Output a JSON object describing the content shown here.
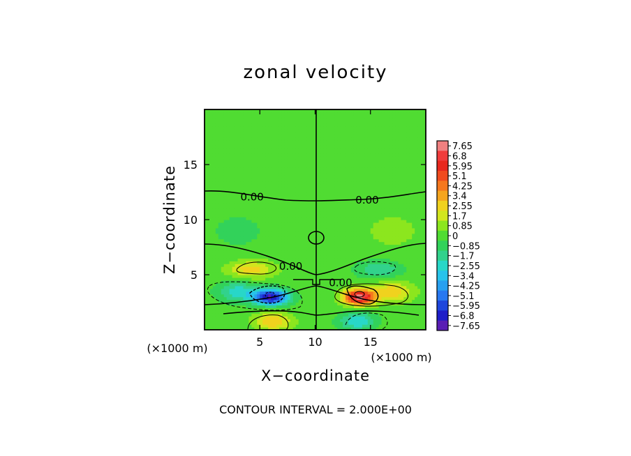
{
  "chart_data": {
    "type": "heatmap",
    "title": "zonal velocity",
    "xlabel": "X−coordinate",
    "ylabel": "Z−coordinate",
    "x_unit": "(×1000 m)",
    "y_unit": "(×1000 m)",
    "xlim": [
      0,
      20
    ],
    "ylim": [
      0,
      20
    ],
    "x_ticks": [
      5,
      10,
      15
    ],
    "y_ticks": [
      5,
      10,
      15
    ],
    "x_tick_labels": [
      "5",
      "10",
      "15"
    ],
    "y_tick_labels": [
      "5",
      "10",
      "15"
    ],
    "contour_interval_text": "CONTOUR INTERVAL = 2.000E+00",
    "contour_labels": [
      {
        "text": "0.00",
        "x": 4.3,
        "y": 12.0
      },
      {
        "text": "0.00",
        "x": 14.7,
        "y": 11.7
      },
      {
        "text": "0.00",
        "x": 7.8,
        "y": 5.7
      },
      {
        "text": "0.00",
        "x": 12.3,
        "y": 4.2
      }
    ],
    "colorbar": {
      "labels": [
        "7.65",
        "6.8",
        "5.95",
        "5.1",
        "4.25",
        "3.4",
        "2.55",
        "1.7",
        "0.85",
        "0",
        "−0.85",
        "−1.7",
        "−2.55",
        "−3.4",
        "−4.25",
        "−5.1",
        "−5.95",
        "−6.8",
        "−7.65"
      ],
      "colors": [
        "#f08080",
        "#f03c3c",
        "#e8281e",
        "#f04b1e",
        "#f5781e",
        "#f5a51e",
        "#f0d21e",
        "#d2e61e",
        "#8ce61e",
        "#50dc32",
        "#32d25a",
        "#32d28c",
        "#28d7c8",
        "#28c3eb",
        "#28a0f0",
        "#2878f0",
        "#1e46dc",
        "#1e1ec8",
        "#5a1eb4"
      ],
      "range": [
        -7.65,
        7.65
      ]
    },
    "features": [
      {
        "x": 6.0,
        "y": 3.0,
        "sx": 1.6,
        "sy": 0.7,
        "value": -7.0
      },
      {
        "x": 14.0,
        "y": 3.0,
        "sx": 1.4,
        "sy": 0.7,
        "value": 7.2
      },
      {
        "x": 4.2,
        "y": 5.5,
        "sx": 2.0,
        "sy": 0.8,
        "value": 2.5
      },
      {
        "x": 15.8,
        "y": 5.5,
        "sx": 2.0,
        "sy": 0.8,
        "value": -2.0
      },
      {
        "x": 6.2,
        "y": 0.8,
        "sx": 1.6,
        "sy": 0.8,
        "value": 2.8
      },
      {
        "x": 13.8,
        "y": 0.8,
        "sx": 1.6,
        "sy": 0.8,
        "value": -2.8
      },
      {
        "x": 3.0,
        "y": 3.5,
        "sx": 1.8,
        "sy": 0.9,
        "value": -2.5
      },
      {
        "x": 17.0,
        "y": 3.5,
        "sx": 1.8,
        "sy": 0.9,
        "value": 2.5
      },
      {
        "x": 3.0,
        "y": 9.0,
        "sx": 3.0,
        "sy": 2.0,
        "value": -0.6
      },
      {
        "x": 17.0,
        "y": 9.0,
        "sx": 3.0,
        "sy": 2.0,
        "value": 0.6
      }
    ]
  }
}
